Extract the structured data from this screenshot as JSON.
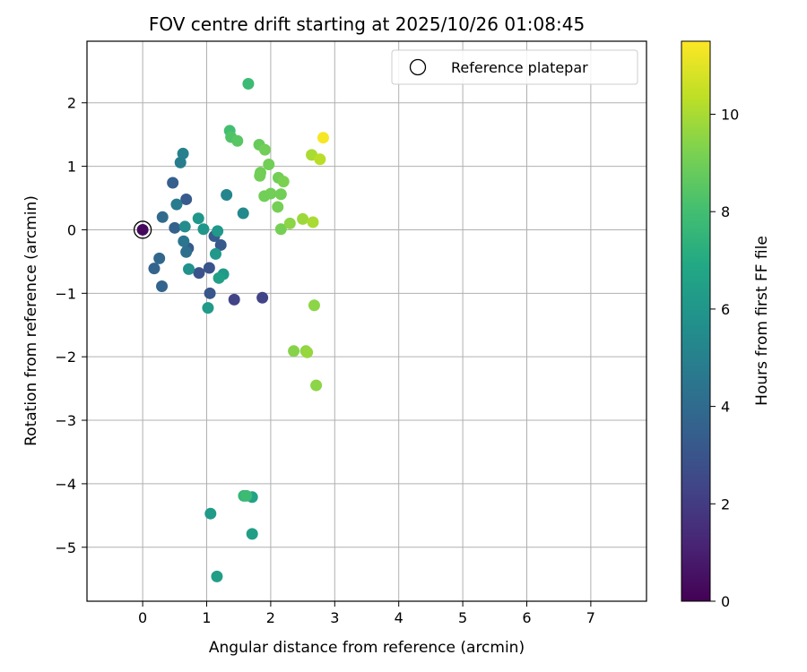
{
  "chart_data": {
    "type": "scatter",
    "title": "FOV centre drift starting at 2025/10/26 01:08:45",
    "xlabel": "Angular distance from reference (arcmin)",
    "ylabel": "Rotation from reference (arcmin)",
    "xlim": [
      -0.87,
      7.87
    ],
    "ylim": [
      -5.85,
      2.97
    ],
    "xticks": [
      0,
      1,
      2,
      3,
      4,
      5,
      6,
      7
    ],
    "yticks": [
      2,
      1,
      0,
      -1,
      -2,
      -3,
      -4,
      -5
    ],
    "xtick_labels": [
      "0",
      "1",
      "2",
      "3",
      "4",
      "5",
      "6",
      "7"
    ],
    "ytick_labels": [
      "2",
      "1",
      "0",
      "−1",
      "−2",
      "−3",
      "−4",
      "−5"
    ],
    "grid": true,
    "legend": {
      "position": "top-right",
      "entries": [
        {
          "label": "Reference platepar",
          "marker": "open-circle"
        }
      ]
    },
    "reference_point": {
      "x": 0,
      "y": 0
    },
    "colorbar": {
      "label": "Hours from first FF file",
      "range": [
        0,
        11.5
      ],
      "ticks": [
        0,
        2,
        4,
        6,
        8,
        10
      ],
      "tick_labels": [
        "0",
        "2",
        "4",
        "6",
        "8",
        "10"
      ],
      "colormap": "viridis"
    },
    "points": [
      {
        "x": 0.0,
        "y": 0.0,
        "h": 0.3
      },
      {
        "x": 1.43,
        "y": -1.1,
        "h": 2.3
      },
      {
        "x": 1.87,
        "y": -1.07,
        "h": 2.3
      },
      {
        "x": 1.04,
        "y": -0.6,
        "h": 3.0
      },
      {
        "x": 0.88,
        "y": -0.68,
        "h": 3.0
      },
      {
        "x": 1.05,
        "y": -1.0,
        "h": 3.1
      },
      {
        "x": 0.71,
        "y": -0.29,
        "h": 3.2
      },
      {
        "x": 1.22,
        "y": -0.24,
        "h": 3.2
      },
      {
        "x": 1.12,
        "y": -0.1,
        "h": 3.3
      },
      {
        "x": 0.68,
        "y": 0.48,
        "h": 3.3
      },
      {
        "x": 0.47,
        "y": 0.74,
        "h": 3.5
      },
      {
        "x": 0.5,
        "y": 0.03,
        "h": 3.6
      },
      {
        "x": 0.3,
        "y": -0.89,
        "h": 3.7
      },
      {
        "x": 0.18,
        "y": -0.61,
        "h": 3.7
      },
      {
        "x": 0.26,
        "y": -0.45,
        "h": 3.8
      },
      {
        "x": 0.31,
        "y": 0.2,
        "h": 4.0
      },
      {
        "x": 0.68,
        "y": -0.35,
        "h": 4.2
      },
      {
        "x": 0.64,
        "y": -0.18,
        "h": 4.5
      },
      {
        "x": 0.53,
        "y": 0.4,
        "h": 4.8
      },
      {
        "x": 0.59,
        "y": 1.06,
        "h": 4.8
      },
      {
        "x": 0.63,
        "y": 1.2,
        "h": 5.0
      },
      {
        "x": 1.31,
        "y": 0.55,
        "h": 5.2
      },
      {
        "x": 1.57,
        "y": 0.26,
        "h": 5.4
      },
      {
        "x": 0.66,
        "y": 0.05,
        "h": 5.5
      },
      {
        "x": 0.72,
        "y": -0.62,
        "h": 5.8
      },
      {
        "x": 0.87,
        "y": 0.18,
        "h": 6.0
      },
      {
        "x": 0.95,
        "y": 0.01,
        "h": 6.0
      },
      {
        "x": 1.17,
        "y": -0.02,
        "h": 6.1
      },
      {
        "x": 1.14,
        "y": -0.38,
        "h": 6.1
      },
      {
        "x": 1.26,
        "y": -0.7,
        "h": 6.2
      },
      {
        "x": 1.02,
        "y": -1.23,
        "h": 6.2
      },
      {
        "x": 1.19,
        "y": -0.76,
        "h": 6.5
      },
      {
        "x": 1.06,
        "y": -4.47,
        "h": 6.2
      },
      {
        "x": 1.16,
        "y": -5.46,
        "h": 6.4
      },
      {
        "x": 1.71,
        "y": -4.21,
        "h": 6.6
      },
      {
        "x": 1.71,
        "y": -4.79,
        "h": 6.4
      },
      {
        "x": 1.58,
        "y": -4.19,
        "h": 7.6
      },
      {
        "x": 1.62,
        "y": -4.19,
        "h": 7.8
      },
      {
        "x": 1.65,
        "y": 2.3,
        "h": 7.8
      },
      {
        "x": 1.36,
        "y": 1.56,
        "h": 8.0
      },
      {
        "x": 1.38,
        "y": 1.46,
        "h": 8.3
      },
      {
        "x": 1.48,
        "y": 1.4,
        "h": 8.5
      },
      {
        "x": 1.82,
        "y": 1.34,
        "h": 8.8
      },
      {
        "x": 1.91,
        "y": 1.26,
        "h": 9.0
      },
      {
        "x": 1.97,
        "y": 1.03,
        "h": 9.0
      },
      {
        "x": 1.84,
        "y": 0.9,
        "h": 9.0
      },
      {
        "x": 1.83,
        "y": 0.85,
        "h": 9.0
      },
      {
        "x": 2.12,
        "y": 0.82,
        "h": 9.0
      },
      {
        "x": 2.2,
        "y": 0.76,
        "h": 9.2
      },
      {
        "x": 1.9,
        "y": 0.53,
        "h": 9.0
      },
      {
        "x": 2.0,
        "y": 0.57,
        "h": 9.0
      },
      {
        "x": 2.16,
        "y": 0.56,
        "h": 9.0
      },
      {
        "x": 2.11,
        "y": 0.36,
        "h": 9.1
      },
      {
        "x": 2.16,
        "y": 0.01,
        "h": 9.1
      },
      {
        "x": 2.3,
        "y": 0.1,
        "h": 9.5
      },
      {
        "x": 2.5,
        "y": 0.17,
        "h": 9.8
      },
      {
        "x": 2.66,
        "y": 0.12,
        "h": 10.0
      },
      {
        "x": 2.64,
        "y": 1.18,
        "h": 10.0
      },
      {
        "x": 2.77,
        "y": 1.11,
        "h": 10.3
      },
      {
        "x": 2.82,
        "y": 1.45,
        "h": 11.4
      },
      {
        "x": 2.36,
        "y": -1.91,
        "h": 9.4
      },
      {
        "x": 2.55,
        "y": -1.91,
        "h": 9.5
      },
      {
        "x": 2.57,
        "y": -1.93,
        "h": 9.7
      },
      {
        "x": 2.68,
        "y": -1.19,
        "h": 9.5
      },
      {
        "x": 2.71,
        "y": -2.45,
        "h": 9.5
      }
    ]
  }
}
